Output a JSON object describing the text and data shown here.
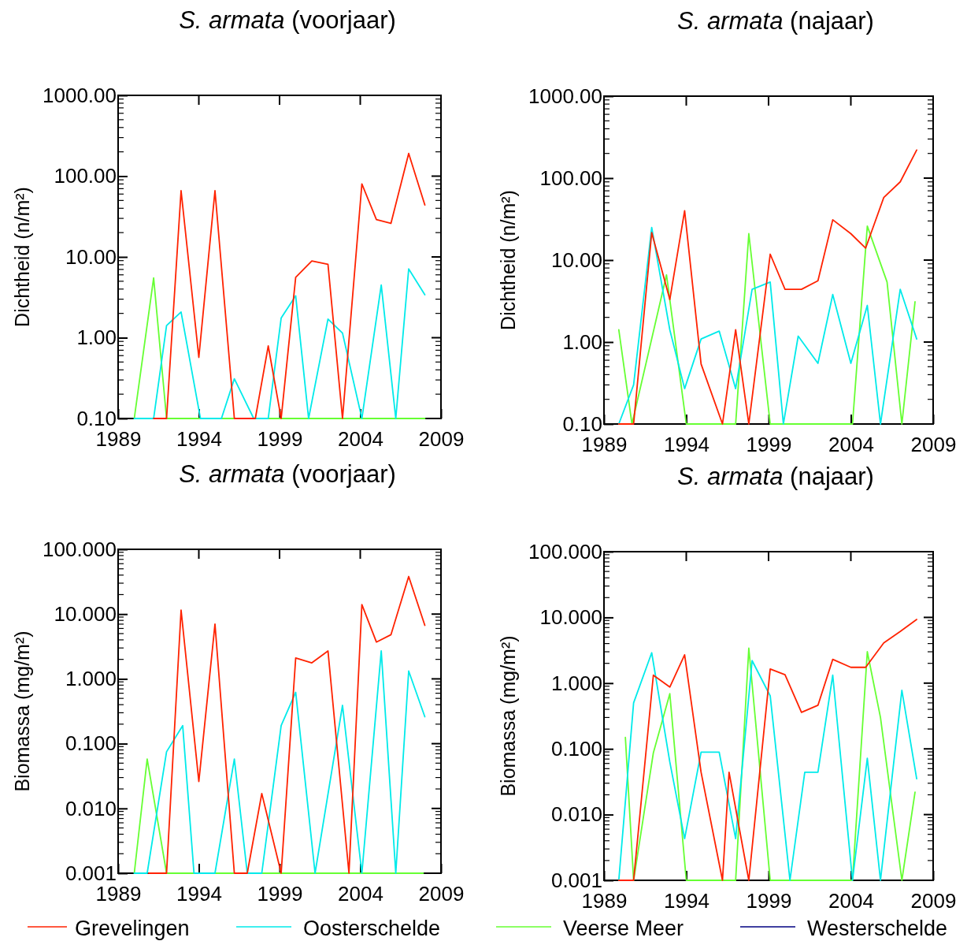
{
  "chart_data": [
    {
      "type": "line",
      "title": "S. armata (voorjaar)",
      "ylabel": "Dichtheid (n/m²)",
      "log": "y",
      "xlim": [
        1989,
        2009
      ],
      "xticks": [
        1989,
        1994,
        1999,
        2004,
        2009
      ],
      "ylim": [
        0.1,
        1000
      ],
      "yticks": [
        {
          "value": 0.1,
          "label": "0.10"
        },
        {
          "value": 1,
          "label": "1.00"
        },
        {
          "value": 10,
          "label": "10.00"
        },
        {
          "value": 100,
          "label": "100.00"
        },
        {
          "value": 1000,
          "label": "1000.00"
        }
      ],
      "series": [
        {
          "color": "#66ff33",
          "x": [
            1990,
            1991.2,
            1992,
            2008
          ],
          "values": [
            0.1,
            5.5,
            0.1,
            0.1
          ]
        },
        {
          "color": "#00eaea",
          "x": [
            1990,
            1991.2,
            1992,
            1992.9,
            1994.1,
            1995.4,
            1996.2,
            1997.4,
            1998.3,
            1999.1,
            2000,
            2000.8,
            2002,
            2002.9,
            2004.1,
            2005.3,
            2006.2,
            2007,
            2008
          ],
          "values": [
            0.1,
            0.1,
            1.41,
            2.08,
            0.1,
            0.1,
            0.31,
            0.1,
            0.1,
            1.75,
            3.3,
            0.1,
            1.7,
            1.14,
            0.1,
            4.5,
            0.1,
            7.1,
            3.4
          ]
        },
        {
          "color": "#ff2200",
          "x": [
            1991.2,
            1992,
            1992.9,
            1994,
            1995,
            1996.2,
            1997.5,
            1998.3,
            1999.1,
            2000,
            2001,
            2002,
            2002.9,
            2004.1,
            2005,
            2005.9,
            2007,
            2008
          ],
          "values": [
            0.1,
            0.1,
            66,
            0.57,
            66,
            0.1,
            0.1,
            0.79,
            0.1,
            5.6,
            8.9,
            8.1,
            0.1,
            80,
            29,
            26,
            191,
            44
          ]
        }
      ]
    },
    {
      "type": "line",
      "title": "S. armata (najaar)",
      "ylabel": "Dichtheid (n/m²)",
      "log": "y",
      "xlim": [
        1989,
        2009
      ],
      "xticks": [
        1989,
        1994,
        1999,
        2004,
        2009
      ],
      "ylim": [
        0.1,
        1000
      ],
      "yticks": [
        {
          "value": 0.1,
          "label": "0.10"
        },
        {
          "value": 1,
          "label": "1.00"
        },
        {
          "value": 10,
          "label": "10.00"
        },
        {
          "value": 100,
          "label": "100.00"
        },
        {
          "value": 1000,
          "label": "1000.00"
        }
      ],
      "series": [
        {
          "color": "#66ff33",
          "x": [
            1989.9,
            1990.7,
            1992.8,
            1994,
            1997,
            1997.8,
            1999.1,
            2004.1,
            2005,
            2006.2,
            2007.1,
            2007.9
          ],
          "values": [
            1.41,
            0.1,
            6.6,
            0.1,
            0.1,
            21,
            0.1,
            0.1,
            26,
            5.4,
            0.1,
            3.1
          ]
        },
        {
          "color": "#00eaea",
          "x": [
            1989.9,
            1990.8,
            1991.9,
            1993,
            1993.9,
            1994.9,
            1996,
            1997,
            1998,
            1999.1,
            1999.9,
            2000.8,
            2002,
            2002.9,
            2004,
            2005,
            2005.8,
            2007,
            2008
          ],
          "values": [
            0.1,
            0.3,
            25,
            1.41,
            0.27,
            1.09,
            1.36,
            0.27,
            4.4,
            5.4,
            0.1,
            1.18,
            0.55,
            3.8,
            0.55,
            2.8,
            0.1,
            4.4,
            1.09
          ]
        },
        {
          "color": "#ff2200",
          "x": [
            1989.9,
            1990.8,
            1991.9,
            1993,
            1993.9,
            1994.9,
            1996.2,
            1997,
            1997.8,
            1999.1,
            2000,
            2001,
            2002,
            2002.9,
            2004,
            2004.9,
            2006,
            2007,
            2008
          ],
          "values": [
            0.1,
            0.1,
            21.6,
            3.3,
            40,
            0.54,
            0.1,
            1.41,
            0.1,
            11.8,
            4.4,
            4.4,
            5.6,
            31,
            21,
            14,
            58,
            90,
            220
          ]
        }
      ]
    },
    {
      "type": "line",
      "title": "S. armata (voorjaar)",
      "ylabel": "Biomassa (mg/m²)",
      "log": "y",
      "xlim": [
        1989,
        2009
      ],
      "xticks": [
        1989,
        1994,
        1999,
        2004,
        2009
      ],
      "ylim": [
        0.001,
        100
      ],
      "yticks": [
        {
          "value": 0.001,
          "label": "0.001"
        },
        {
          "value": 0.01,
          "label": "0.010"
        },
        {
          "value": 0.1,
          "label": "0.100"
        },
        {
          "value": 1,
          "label": "1.000"
        },
        {
          "value": 10,
          "label": "10.000"
        },
        {
          "value": 100,
          "label": "100.000"
        }
      ],
      "series": [
        {
          "color": "#66ff33",
          "x": [
            1990,
            1990.8,
            1992,
            2007.9
          ],
          "values": [
            0.001,
            0.058,
            0.001,
            0.001
          ]
        },
        {
          "color": "#00eaea",
          "x": [
            1990,
            1990.8,
            1992,
            1993,
            1993.7,
            1995,
            1996.2,
            1997,
            1997.9,
            1999.1,
            2000,
            2001.2,
            2002.9,
            2004.1,
            2005.3,
            2006.2,
            2007,
            2008
          ],
          "values": [
            0.001,
            0.001,
            0.075,
            0.19,
            0.001,
            0.001,
            0.058,
            0.001,
            0.001,
            0.19,
            0.62,
            0.001,
            0.39,
            0.001,
            2.7,
            0.001,
            1.32,
            0.26
          ]
        },
        {
          "color": "#ff2200",
          "x": [
            1990.9,
            1992,
            1992.9,
            1994,
            1995,
            1996.2,
            1997,
            1997.9,
            1999.1,
            2000,
            2001,
            2002,
            2003.3,
            2004.1,
            2005,
            2005.9,
            2007,
            2008
          ],
          "values": [
            0.001,
            0.001,
            11.5,
            0.026,
            7,
            0.001,
            0.001,
            0.017,
            0.001,
            2.1,
            1.77,
            2.7,
            0.001,
            14,
            3.7,
            4.8,
            38,
            6.7
          ]
        }
      ]
    },
    {
      "type": "line",
      "title": "S. armata (najaar)",
      "ylabel": "Biomassa (mg/m²)",
      "log": "y",
      "legend": "bottom",
      "xlim": [
        1989,
        2009
      ],
      "xticks": [
        1989,
        1994,
        1999,
        2004,
        2009
      ],
      "ylim": [
        0.001,
        100
      ],
      "yticks": [
        {
          "value": 0.001,
          "label": "0.001"
        },
        {
          "value": 0.01,
          "label": "0.010"
        },
        {
          "value": 0.1,
          "label": "0.100"
        },
        {
          "value": 1,
          "label": "1.000"
        },
        {
          "value": 10,
          "label": "10.000"
        },
        {
          "value": 100,
          "label": "100.000"
        }
      ],
      "series": [
        {
          "name": "Westerschelde",
          "color": "#000080"
        },
        {
          "name": "Veerse Meer",
          "color": "#66ff33",
          "x": [
            1990.3,
            1990.8,
            1992,
            1993,
            1994,
            1997,
            1997.8,
            1999.1,
            2004.1,
            2005,
            2005.8,
            2007.1,
            2007.9
          ],
          "values": [
            0.149,
            0.001,
            0.087,
            0.69,
            0.001,
            0.001,
            3.4,
            0.001,
            0.001,
            3,
            0.3,
            0.001,
            0.022
          ]
        },
        {
          "name": "Oosterschelde",
          "color": "#00eaea",
          "x": [
            1989.9,
            1990.8,
            1991.9,
            1993,
            1993.9,
            1994.9,
            1996,
            1997,
            1998,
            1999.1,
            2000.3,
            2001.2,
            2002,
            2002.9,
            2004.1,
            2005,
            2005.8,
            2007.1,
            2008
          ],
          "values": [
            0.001,
            0.5,
            2.9,
            0.063,
            0.0043,
            0.089,
            0.089,
            0.0043,
            2.2,
            0.64,
            0.001,
            0.044,
            0.044,
            1.32,
            0.001,
            0.072,
            0.001,
            0.78,
            0.035
          ]
        },
        {
          "name": "Grevelingen",
          "color": "#ff2200",
          "x": [
            1989.9,
            1990.8,
            1992,
            1993,
            1993.9,
            1994.9,
            1996.2,
            1996.6,
            1997.8,
            1999.1,
            2000,
            2001,
            2002,
            2002.9,
            2004,
            2004.9,
            2006,
            2007,
            2008
          ],
          "values": [
            0.001,
            0.001,
            1.32,
            0.87,
            2.7,
            0.044,
            0.001,
            0.044,
            0.001,
            1.64,
            1.34,
            0.36,
            0.46,
            2.3,
            1.74,
            1.74,
            4.1,
            6.1,
            9.3
          ]
        }
      ]
    }
  ]
}
